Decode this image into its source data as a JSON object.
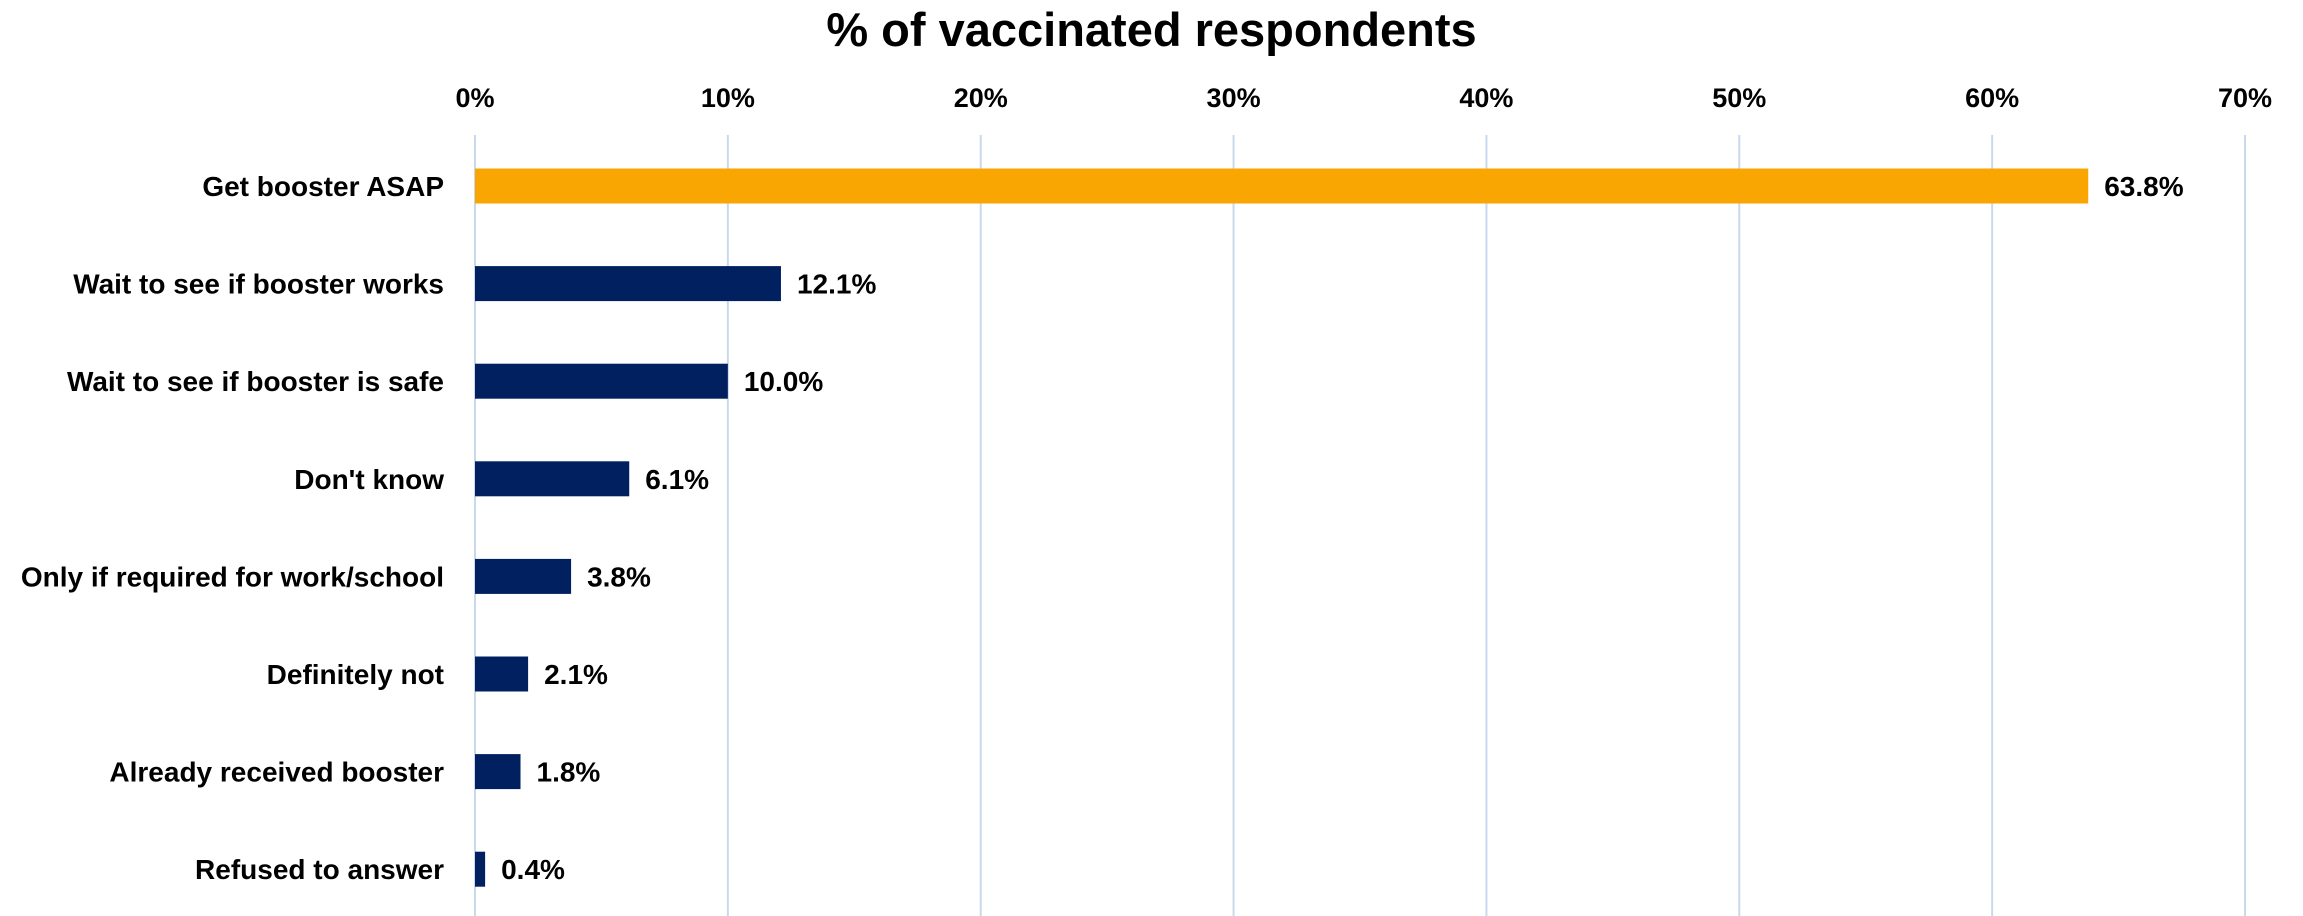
{
  "chart_data": {
    "type": "bar",
    "orientation": "horizontal",
    "title": "% of vaccinated respondents",
    "xlabel": "",
    "ylabel": "",
    "xlim": [
      0,
      70
    ],
    "x_ticks": [
      0,
      10,
      20,
      30,
      40,
      50,
      60,
      70
    ],
    "x_tick_labels": [
      "0%",
      "10%",
      "20%",
      "30%",
      "40%",
      "50%",
      "60%",
      "70%"
    ],
    "x_axis_position": "top",
    "grid": true,
    "legend": "none",
    "categories": [
      "Get booster ASAP",
      "Wait to see if booster works",
      "Wait to see if booster is safe",
      "Don't know",
      "Only if required for work/school",
      "Definitely not",
      "Already received booster",
      "Refused to answer"
    ],
    "values": [
      63.8,
      12.1,
      10.0,
      6.1,
      3.8,
      2.1,
      1.8,
      0.4
    ],
    "data_labels": [
      "63.8%",
      "12.1%",
      "10.0%",
      "6.1%",
      "3.8%",
      "2.1%",
      "1.8%",
      "0.4%"
    ],
    "colors": {
      "highlight": "#f9a602",
      "default": "#002060",
      "gridline": "#c9d9ec"
    },
    "highlight_index": 0
  }
}
